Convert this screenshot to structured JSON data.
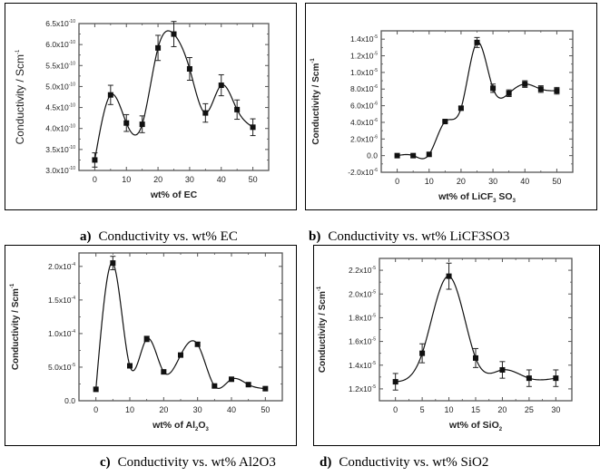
{
  "captions": [
    {
      "letter": "a)",
      "text": "Conductivity vs. wt% EC"
    },
    {
      "letter": "b)",
      "text": "Conductivity vs. wt% LiCF3SO3"
    },
    {
      "letter": "c)",
      "text": "Conductivity vs. wt% Al2O3"
    },
    {
      "letter": "d)",
      "text": "Conductivity vs. wt% SiO2"
    }
  ],
  "chart_data": [
    {
      "id": "a",
      "type": "line",
      "title": "Conductivity vs. wt% EC",
      "xlabel": "wt% of EC",
      "xlabel_sub": null,
      "ylabel": "Conductivity / Scm",
      "ylabel_sup": "-1",
      "xlim": [
        -5,
        55
      ],
      "ylim": [
        3e-10,
        6.5e-10
      ],
      "xticks": [
        0,
        10,
        20,
        30,
        40,
        50
      ],
      "yticks": [
        {
          "value": 3e-10,
          "mant": "3.0x10",
          "exp": "-10"
        },
        {
          "value": 3.5e-10,
          "mant": "3.5x10",
          "exp": "-10"
        },
        {
          "value": 4e-10,
          "mant": "4.0x10",
          "exp": "-10"
        },
        {
          "value": 4.5e-10,
          "mant": "4.5x10",
          "exp": "-10"
        },
        {
          "value": 5e-10,
          "mant": "5.0x10",
          "exp": "-10"
        },
        {
          "value": 5.5e-10,
          "mant": "5.5x10",
          "exp": "-10"
        },
        {
          "value": 6e-10,
          "mant": "6.0x10",
          "exp": "-10"
        },
        {
          "value": 6.5e-10,
          "mant": "6.5x10",
          "exp": "-10"
        }
      ],
      "grid": false,
      "x": [
        0,
        5,
        10,
        15,
        20,
        25,
        30,
        35,
        40,
        45,
        50
      ],
      "y": [
        3.25e-10,
        4.8e-10,
        4.13e-10,
        4.1e-10,
        5.92e-10,
        6.25e-10,
        5.42e-10,
        4.37e-10,
        5.03e-10,
        4.45e-10,
        4.03e-10
      ],
      "err": [
        1.7e-11,
        2.3e-11,
        2e-11,
        2e-11,
        3e-11,
        3e-11,
        2.7e-11,
        2.2e-11,
        2.5e-11,
        2.3e-11,
        2e-11
      ]
    },
    {
      "id": "b",
      "type": "line",
      "title": "Conductivity vs. wt% LiCF3SO3",
      "xlabel": "wt% of LiCF",
      "xlabel_sub": "3",
      "xlabel_tail": " SO",
      "xlabel_sub2": "3",
      "ylabel": "Conductivity / Scm",
      "ylabel_sup": "-1",
      "xlim": [
        -5,
        55
      ],
      "ylim": [
        -2e-06,
        1.5e-05
      ],
      "xticks": [
        0,
        10,
        20,
        30,
        40,
        50
      ],
      "yticks": [
        {
          "value": -2e-06,
          "mant": "-2.0x10",
          "exp": "-6"
        },
        {
          "value": 0,
          "mant": "0.0",
          "exp": ""
        },
        {
          "value": 2e-06,
          "mant": "2.0x10",
          "exp": "-6"
        },
        {
          "value": 4e-06,
          "mant": "4.0x10",
          "exp": "-6"
        },
        {
          "value": 6e-06,
          "mant": "6.0x10",
          "exp": "-6"
        },
        {
          "value": 8e-06,
          "mant": "8.0x10",
          "exp": "-6"
        },
        {
          "value": 1e-05,
          "mant": "1.0x10",
          "exp": "-5"
        },
        {
          "value": 1.2e-05,
          "mant": "1.2x10",
          "exp": "-5"
        },
        {
          "value": 1.4e-05,
          "mant": "1.4x10",
          "exp": "-5"
        }
      ],
      "grid": false,
      "x": [
        0,
        5,
        10,
        15,
        20,
        25,
        30,
        35,
        40,
        45,
        50
      ],
      "y": [
        0,
        0,
        1.5e-07,
        4.1e-06,
        5.7e-06,
        1.36e-05,
        8.1e-06,
        7.5e-06,
        8.6e-06,
        8e-06,
        7.8e-06
      ],
      "err": [
        0,
        0,
        0,
        1e-07,
        2e-07,
        6e-07,
        5e-07,
        4e-07,
        4e-07,
        4e-07,
        4e-07
      ]
    },
    {
      "id": "c",
      "type": "line",
      "title": "Conductivity vs. wt% Al2O3",
      "xlabel": "wt% of Al",
      "xlabel_sub": "2",
      "xlabel_tail": "O",
      "xlabel_sub2": "3",
      "ylabel": "Conductivity / Scm",
      "ylabel_sup": "-1",
      "xlim": [
        -5,
        55
      ],
      "ylim": [
        0,
        0.00022
      ],
      "xticks": [
        0,
        10,
        20,
        30,
        40,
        50
      ],
      "yticks": [
        {
          "value": 0,
          "mant": "0.0",
          "exp": ""
        },
        {
          "value": 5e-05,
          "mant": "5.0x10",
          "exp": "-5"
        },
        {
          "value": 0.0001,
          "mant": "1.0x10",
          "exp": "-4"
        },
        {
          "value": 0.00015,
          "mant": "1.5x10",
          "exp": "-4"
        },
        {
          "value": 0.0002,
          "mant": "2.0x10",
          "exp": "-4"
        }
      ],
      "grid": false,
      "x": [
        0,
        5,
        10,
        15,
        20,
        25,
        30,
        35,
        40,
        45,
        50
      ],
      "y": [
        1.7e-05,
        0.000205,
        5.2e-05,
        9.2e-05,
        4.3e-05,
        6.8e-05,
        8.4e-05,
        2.2e-05,
        3.2e-05,
        2.4e-05,
        1.8e-05
      ],
      "err": [
        0,
        1e-05,
        0,
        4e-06,
        0,
        0,
        3e-06,
        0,
        0,
        0,
        0
      ]
    },
    {
      "id": "d",
      "type": "line",
      "title": "Conductivity vs. wt% SiO2",
      "xlabel": "wt% of SiO",
      "xlabel_sub": "2",
      "ylabel": "Conductivity / Scm",
      "ylabel_sup": "-1",
      "xlim": [
        -3,
        33
      ],
      "ylim": [
        1.1e-05,
        2.3e-05
      ],
      "xticks": [
        0,
        5,
        10,
        15,
        20,
        25,
        30
      ],
      "yticks": [
        {
          "value": 1.2e-05,
          "mant": "1.2x10",
          "exp": "-5"
        },
        {
          "value": 1.4e-05,
          "mant": "1.4x10",
          "exp": "-5"
        },
        {
          "value": 1.6e-05,
          "mant": "1.6x10",
          "exp": "-5"
        },
        {
          "value": 1.8e-05,
          "mant": "1.8x10",
          "exp": "-5"
        },
        {
          "value": 2e-05,
          "mant": "2.0x10",
          "exp": "-5"
        },
        {
          "value": 2.2e-05,
          "mant": "2.2x10",
          "exp": "-5"
        }
      ],
      "grid": false,
      "x": [
        0,
        5,
        10,
        15,
        20,
        25,
        30
      ],
      "y": [
        1.26e-05,
        1.5e-05,
        2.15e-05,
        1.46e-05,
        1.36e-05,
        1.29e-05,
        1.29e-05
      ],
      "err": [
        7e-07,
        8e-07,
        1.1e-06,
        8e-07,
        7e-07,
        7e-07,
        7e-07
      ]
    }
  ]
}
